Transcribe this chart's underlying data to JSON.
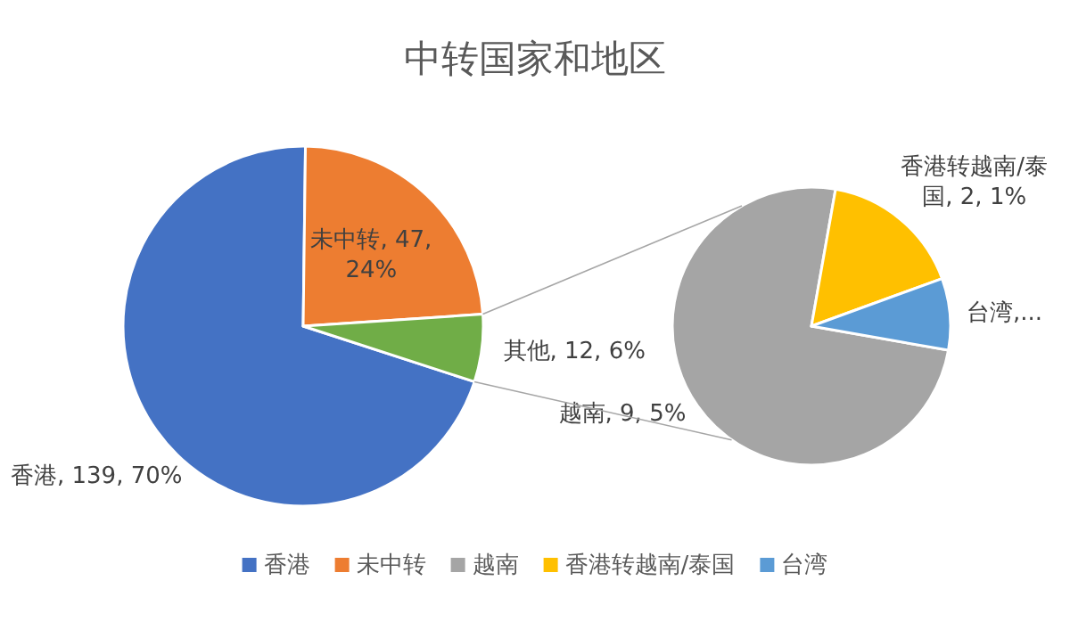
{
  "chart_data": [
    {
      "type": "pie",
      "title": "中转国家和地区",
      "categories": [
        "香港",
        "未中转",
        "其他"
      ],
      "values": [
        139,
        47,
        12
      ],
      "colors": [
        "#4472c4",
        "#ed7d31",
        "#70ad47"
      ],
      "value_labels": [
        ", 139, 70%",
        ", 47, 24%",
        ", 12, 6%"
      ],
      "legend": "bottom"
    },
    {
      "type": "pie",
      "categories": [
        "越南",
        "香港转越南/泰国",
        "台湾"
      ],
      "values": [
        9,
        2,
        1
      ],
      "colors": [
        "#a5a5a5",
        "#ffc000",
        "#5b9bd5"
      ],
      "value_labels": [
        ", 9, 5%",
        ", 2, 1%",
        ",..."
      ],
      "legend": "bottom"
    }
  ]
}
